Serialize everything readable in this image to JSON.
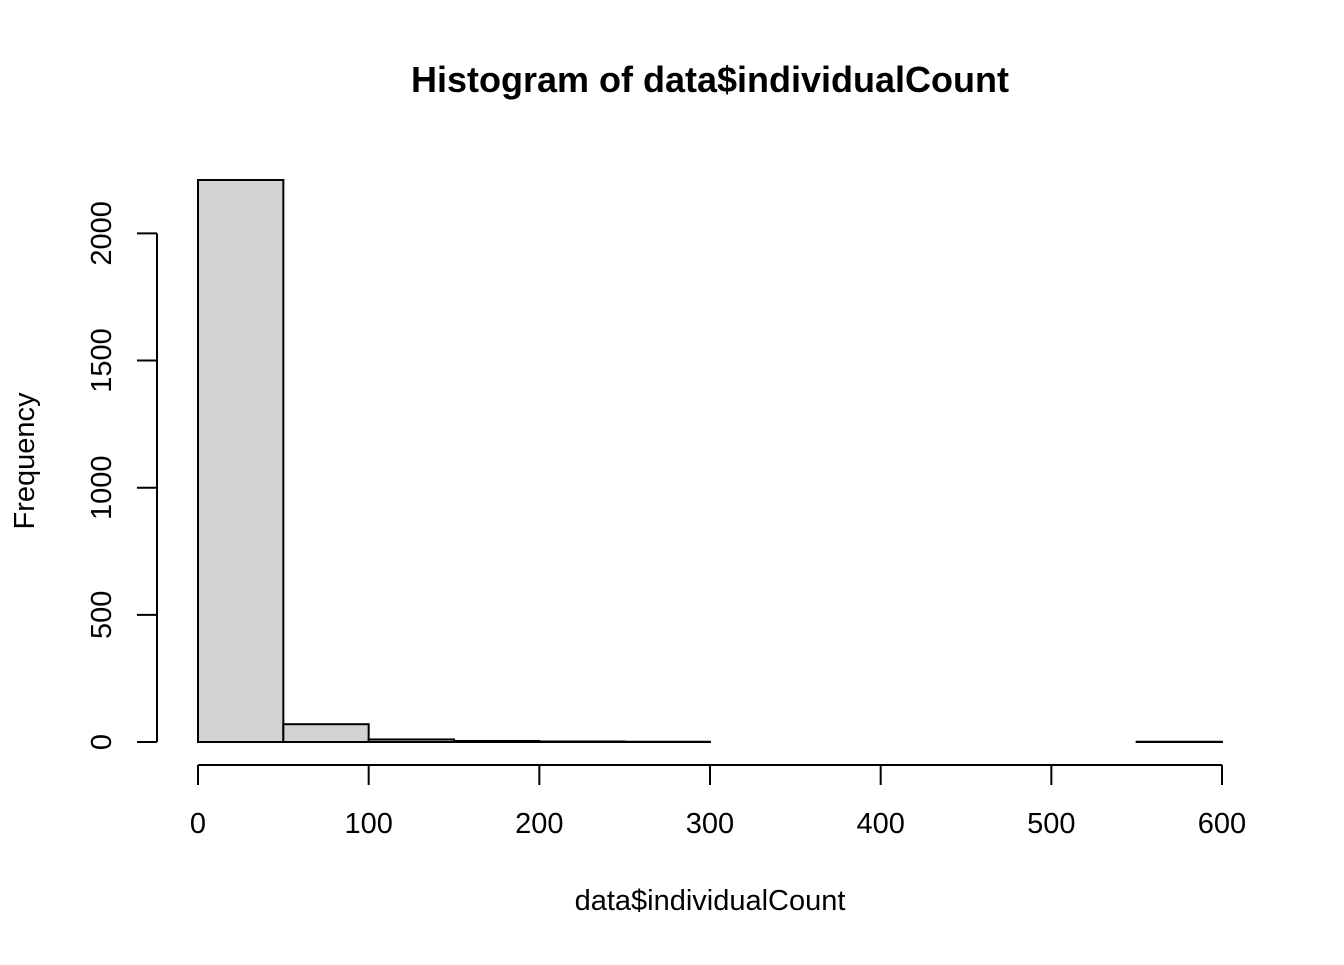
{
  "chart_data": {
    "type": "bar",
    "title": "Histogram of data$individualCount",
    "xlabel": "data$individualCount",
    "ylabel": "Frequency",
    "bin_edges": [
      0,
      50,
      100,
      150,
      200,
      250,
      300,
      350,
      400,
      450,
      500,
      550,
      600
    ],
    "values": [
      2210,
      70,
      10,
      4,
      2,
      1,
      0,
      0,
      0,
      0,
      0,
      1
    ],
    "xlim": [
      0,
      600
    ],
    "ylim": [
      0,
      2210
    ],
    "x_ticks": [
      0,
      100,
      200,
      300,
      400,
      500,
      600
    ],
    "x_tick_labels": [
      "0",
      "100",
      "200",
      "300",
      "400",
      "500",
      "600"
    ],
    "y_ticks": [
      0,
      500,
      1000,
      1500,
      2000
    ],
    "y_tick_labels": [
      "0",
      "500",
      "1000",
      "1500",
      "2000"
    ],
    "bar_fill": "#d3d3d3",
    "bar_stroke": "#000000",
    "grid": false,
    "legend": "none"
  }
}
